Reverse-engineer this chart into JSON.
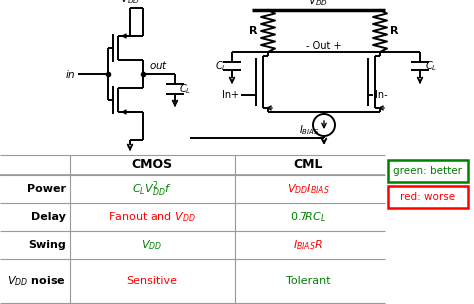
{
  "bg_color": "#ffffff",
  "table": {
    "rows": [
      {
        "label": "Power",
        "cmos_text": "$C_LV_{DD}^2f$",
        "cmos_color": "#008000",
        "cml_text": "$V_{DD}I_{BIAS}$",
        "cml_color": "#ff0000"
      },
      {
        "label": "Delay",
        "cmos_text": "Fanout and $V_{DD}$",
        "cmos_color": "#ff0000",
        "cml_text": "$0.7RC_L$",
        "cml_color": "#008000"
      },
      {
        "label": "Swing",
        "cmos_text": "$V_{DD}$",
        "cmos_color": "#008000",
        "cml_text": "$I_{BIAS}R$",
        "cml_color": "#ff0000"
      },
      {
        "label": "$V_{DD}$ noise",
        "cmos_text": "Sensitive",
        "cmos_color": "#ff0000",
        "cml_text": "Tolerant",
        "cml_color": "#008000"
      }
    ]
  },
  "legend_green": "green: better",
  "legend_red": "red: worse",
  "green_color": "#008000",
  "red_color": "#ff0000",
  "line_color": "#999999",
  "black": "#000000"
}
